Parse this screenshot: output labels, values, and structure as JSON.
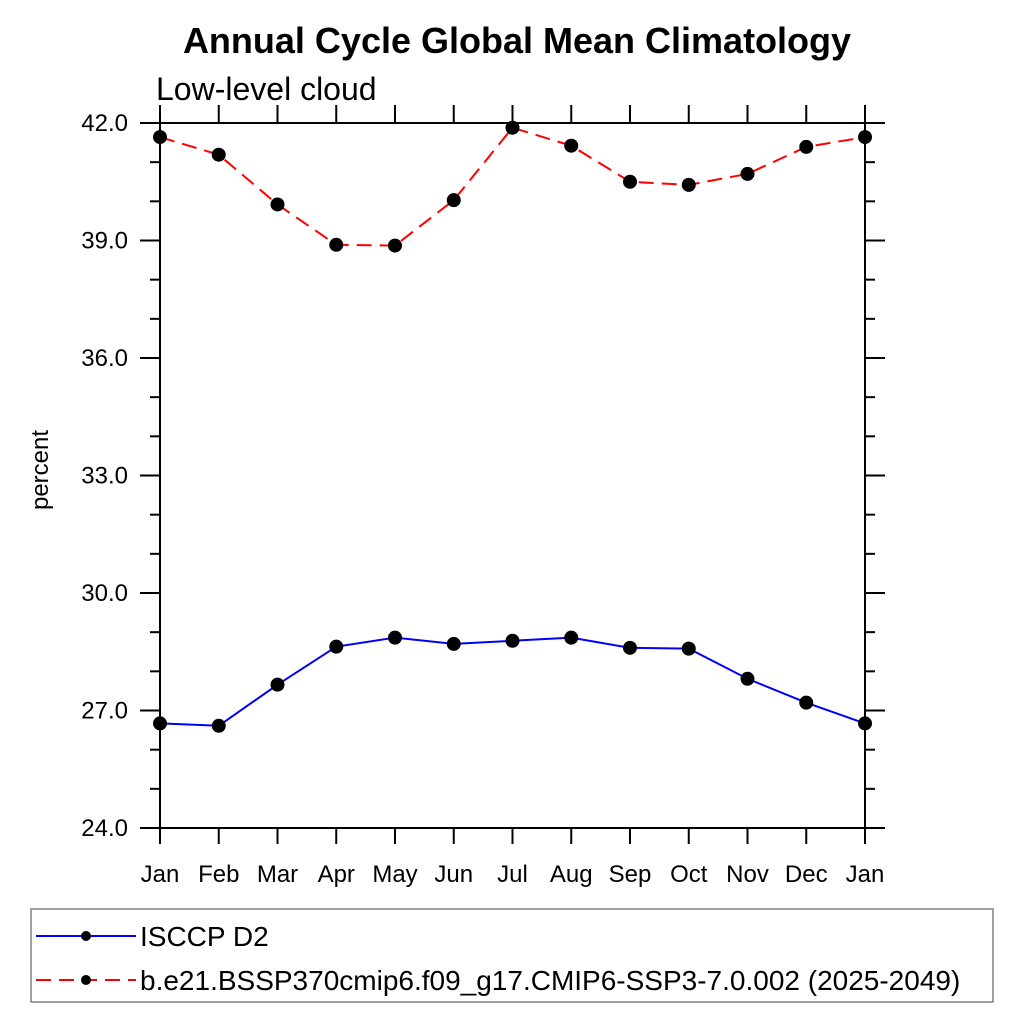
{
  "chart_data": {
    "type": "line",
    "title": "Annual Cycle Global Mean Climatology",
    "subtitle": "Low-level cloud",
    "ylabel": "percent",
    "xlabel": "",
    "categories": [
      "Jan",
      "Feb",
      "Mar",
      "Apr",
      "May",
      "Jun",
      "Jul",
      "Aug",
      "Sep",
      "Oct",
      "Nov",
      "Dec",
      "Jan"
    ],
    "ylim": [
      24.0,
      42.0
    ],
    "ytick_labels": [
      "24.0",
      "27.0",
      "30.0",
      "33.0",
      "36.0",
      "39.0",
      "42.0"
    ],
    "minor_tick_step": 1.0,
    "grid": false,
    "legend_position": "bottom-left",
    "series": [
      {
        "name": "ISCCP D2",
        "color": "#0000ff",
        "line_style": "solid",
        "marker": "filled-circle",
        "marker_color": "#000000",
        "values": [
          26.67,
          26.61,
          27.66,
          28.63,
          28.86,
          28.7,
          28.78,
          28.86,
          28.6,
          28.58,
          27.81,
          27.2,
          26.67
        ]
      },
      {
        "name": "b.e21.BSSP370cmip6.f09_g17.CMIP6-SSP3-7.0.002 (2025-2049)",
        "color": "#ff0000",
        "line_style": "dashed",
        "marker": "filled-circle",
        "marker_color": "#000000",
        "values": [
          41.64,
          41.19,
          39.92,
          38.89,
          38.87,
          40.03,
          41.88,
          41.42,
          40.5,
          40.42,
          40.7,
          41.39,
          41.64
        ]
      }
    ]
  },
  "colors": {
    "axis": "#000000",
    "legend_border": "#808080",
    "background": "#ffffff"
  }
}
